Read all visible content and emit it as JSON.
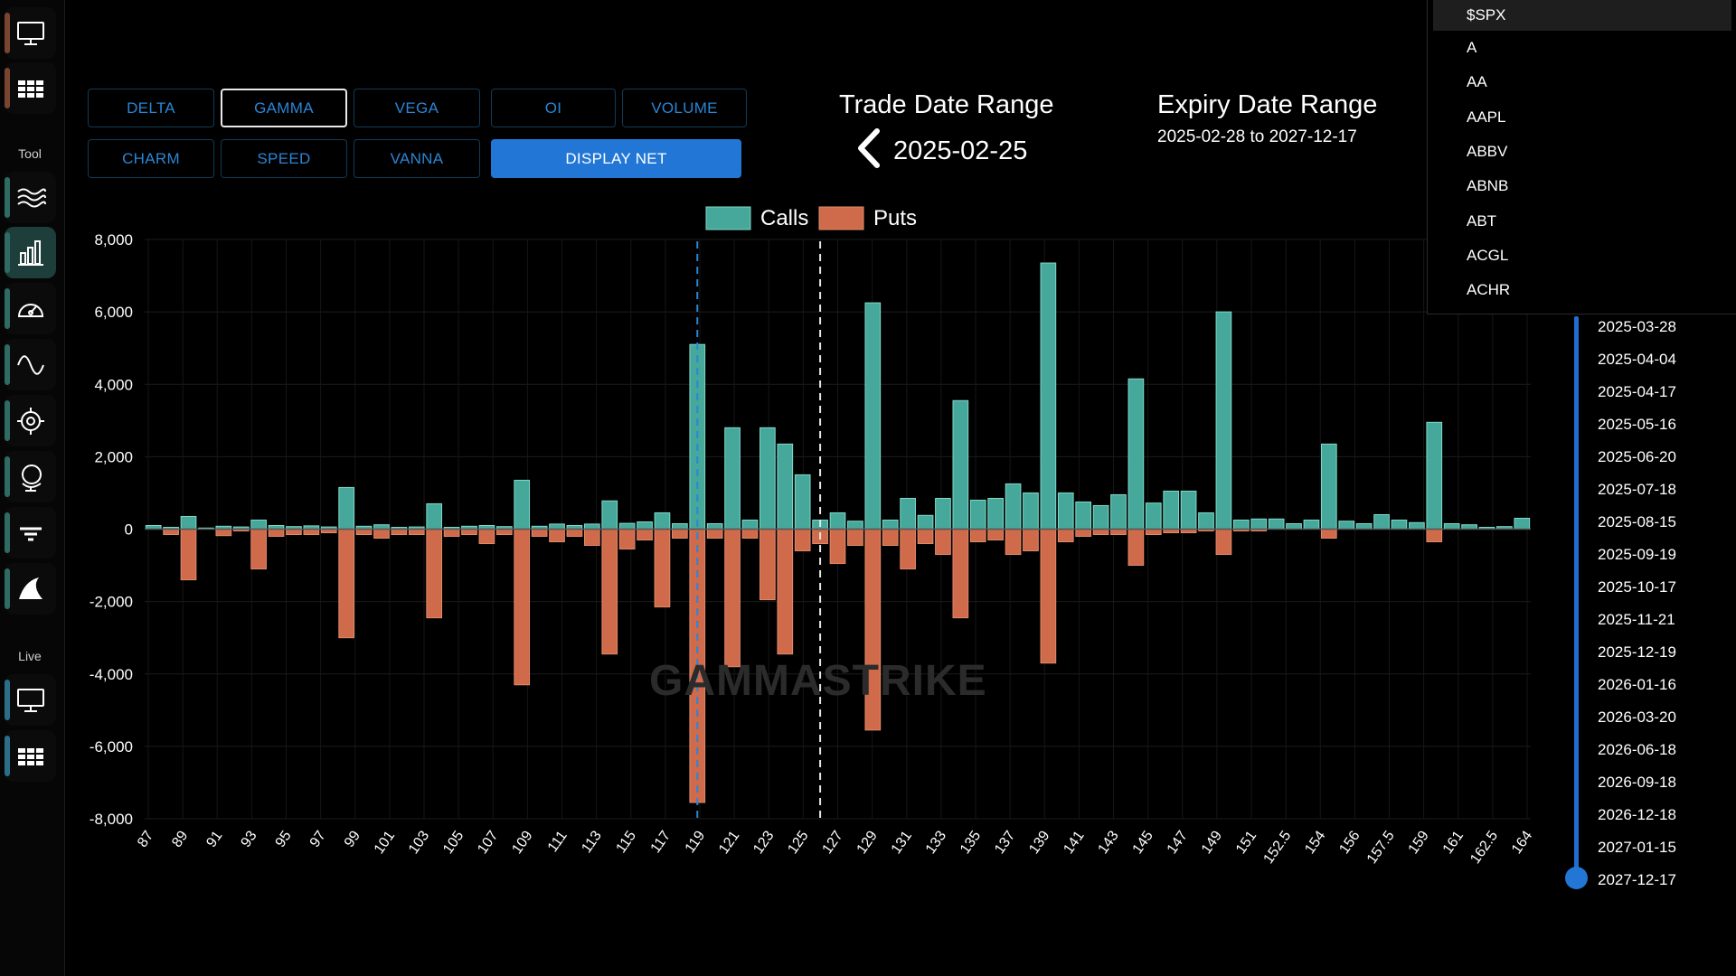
{
  "sidebar": {
    "sections": {
      "tool": "Tool",
      "live": "Live"
    },
    "top_items": [
      {
        "icon": "monitor-icon",
        "color": "brown"
      },
      {
        "icon": "grid-icon",
        "color": "brown"
      }
    ],
    "tool_items": [
      {
        "icon": "waves-icon",
        "color": "teal"
      },
      {
        "icon": "bar-chart-icon",
        "color": "teal",
        "active": true
      },
      {
        "icon": "gauge-icon",
        "color": "teal"
      },
      {
        "icon": "sine-wave-icon",
        "color": "teal"
      },
      {
        "icon": "crosshair-icon",
        "color": "teal"
      },
      {
        "icon": "globe-icon",
        "color": "teal"
      },
      {
        "icon": "filter-icon",
        "color": "teal"
      },
      {
        "icon": "shark-fin-icon",
        "color": "teal"
      }
    ],
    "live_items": [
      {
        "icon": "monitor-icon",
        "color": "blue"
      },
      {
        "icon": "grid-icon",
        "color": "blue"
      }
    ]
  },
  "metrics": {
    "delta": "DELTA",
    "gamma": "GAMMA",
    "vega": "VEGA",
    "oi": "OI",
    "volume": "VOLUME",
    "charm": "CHARM",
    "speed": "SPEED",
    "vanna": "VANNA",
    "display_net": "DISPLAY NET",
    "selected": "GAMMA"
  },
  "trade_range": {
    "title": "Trade Date Range",
    "date": "2025-02-25"
  },
  "expiry_range": {
    "title": "Expiry Date Range",
    "range": "2025-02-28 to 2027-12-17"
  },
  "ticker_dropdown": {
    "selected": "$SPX",
    "items": [
      "$SPX",
      "A",
      "AA",
      "AAPL",
      "ABBV",
      "ABNB",
      "ABT",
      "ACGL",
      "ACHR"
    ]
  },
  "expiry_list": [
    "2025-03-28",
    "2025-04-04",
    "2025-04-17",
    "2025-05-16",
    "2025-06-20",
    "2025-07-18",
    "2025-08-15",
    "2025-09-19",
    "2025-10-17",
    "2025-11-21",
    "2025-12-19",
    "2026-01-16",
    "2026-03-20",
    "2026-06-18",
    "2026-09-18",
    "2026-12-18",
    "2027-01-15",
    "2027-12-17"
  ],
  "watermark": "GAMMASTRIKE",
  "colors": {
    "calls": "#46a89a",
    "puts": "#cf6a4a",
    "accent": "#2277d6"
  },
  "chart_data": {
    "type": "bar",
    "legend": [
      "Calls",
      "Puts"
    ],
    "ylim": [
      -8000,
      8000
    ],
    "yticks": [
      "8,000",
      "6,000",
      "4,000",
      "2,000",
      "0",
      "-2,000",
      "-4,000",
      "-6,000",
      "-8,000"
    ],
    "xtick_labels": [
      "87",
      "89",
      "91",
      "93",
      "95",
      "97",
      "99",
      "101",
      "103",
      "105",
      "107",
      "109",
      "111",
      "113",
      "115",
      "117",
      "119",
      "121",
      "123",
      "125",
      "127",
      "129",
      "131",
      "133",
      "135",
      "137",
      "139",
      "141",
      "143",
      "145",
      "147",
      "149",
      "151",
      "152.5",
      "154",
      "156",
      "157.5",
      "159",
      "161",
      "162.5",
      "164"
    ],
    "grid": true,
    "series": [
      {
        "name": "Calls",
        "values": [
          100,
          50,
          350,
          30,
          80,
          60,
          250,
          100,
          70,
          90,
          60,
          1150,
          80,
          120,
          50,
          60,
          700,
          50,
          80,
          100,
          70,
          1350,
          80,
          140,
          100,
          140,
          780,
          160,
          200,
          450,
          150,
          5100,
          150,
          2800,
          250,
          2800,
          2350,
          1500,
          250,
          450,
          220,
          6250,
          250,
          850,
          380,
          850,
          3550,
          800,
          850,
          1250,
          1000,
          7350,
          1000,
          750,
          650,
          950,
          4150,
          720,
          1050,
          1050,
          450,
          6000,
          250,
          280,
          280,
          150,
          250,
          2350,
          220,
          150,
          400,
          250,
          180,
          2950,
          150,
          120,
          50,
          70,
          300
        ]
      },
      {
        "name": "Puts",
        "values": [
          0,
          -150,
          -1400,
          0,
          -180,
          -50,
          -1100,
          -200,
          -150,
          -150,
          -100,
          -3000,
          -150,
          -250,
          -150,
          -150,
          -2450,
          -200,
          -150,
          -400,
          -150,
          -4300,
          -200,
          -350,
          -200,
          -450,
          -3450,
          -550,
          -300,
          -2150,
          -250,
          -7550,
          -250,
          -3800,
          -250,
          -1950,
          -3450,
          -600,
          -400,
          -950,
          -450,
          -5550,
          -450,
          -1100,
          -400,
          -700,
          -2450,
          -350,
          -300,
          -700,
          -600,
          -3700,
          -350,
          -200,
          -150,
          -150,
          -1000,
          -150,
          -100,
          -100,
          -50,
          -700,
          -50,
          -50,
          0,
          0,
          0,
          -250,
          0,
          0,
          0,
          0,
          0,
          -350,
          0,
          0,
          0,
          0,
          0
        ]
      }
    ],
    "markers": [
      {
        "label": "",
        "style": "blue-dashed",
        "x_index": 31
      },
      {
        "label": "",
        "style": "white-dashed",
        "x_index": 38
      }
    ]
  }
}
